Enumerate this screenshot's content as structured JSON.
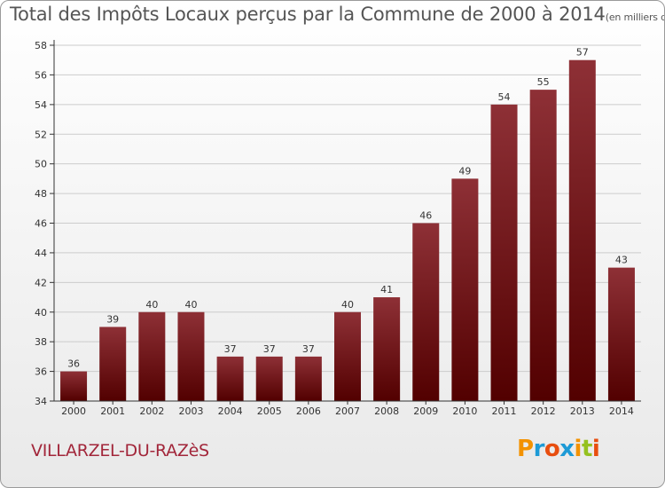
{
  "header": {
    "title": "Total des Impôts Locaux perçus par la Commune de 2000 à 2014",
    "unit": "(en milliers d'€)"
  },
  "commune": "VILLARZEL-DU-RAZèS",
  "logo": {
    "letters": [
      "P",
      "r",
      "o",
      "x",
      "i",
      "t",
      "i"
    ],
    "colors": [
      "#f39200",
      "#1d9ad6",
      "#e84e0f",
      "#1d9ad6",
      "#f39200",
      "#95c11f",
      "#e84e0f"
    ]
  },
  "chart_data": {
    "type": "bar",
    "title": "Total des Impôts Locaux perçus par la Commune de 2000 à 2014",
    "xlabel": "",
    "ylabel": "",
    "categories": [
      "2000",
      "2001",
      "2002",
      "2003",
      "2004",
      "2005",
      "2006",
      "2007",
      "2008",
      "2009",
      "2010",
      "2011",
      "2012",
      "2013",
      "2014"
    ],
    "values": [
      36,
      39,
      40,
      40,
      37,
      37,
      37,
      40,
      41,
      46,
      49,
      54,
      55,
      57,
      43
    ],
    "ylim": [
      34,
      58
    ],
    "yticks": [
      34,
      36,
      38,
      40,
      42,
      44,
      46,
      48,
      50,
      52,
      54,
      56,
      58
    ],
    "grid": true,
    "colors": {
      "bar_top": "#8e3036",
      "bar_bottom": "#520000",
      "axis": "#333333",
      "grid": "#cccccc",
      "text": "#333333"
    }
  }
}
